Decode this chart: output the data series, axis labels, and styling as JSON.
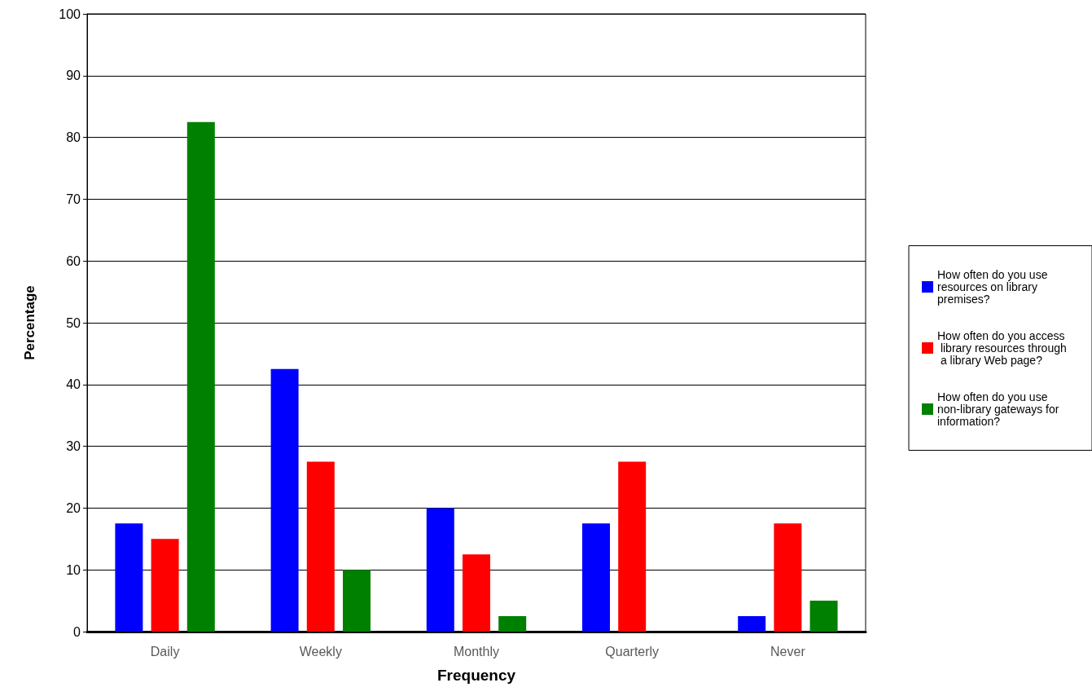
{
  "chart_data": {
    "type": "bar",
    "xlabel": "Frequency",
    "ylabel": "Percentage",
    "categories": [
      "Daily",
      "Weekly",
      "Monthly",
      "Quarterly",
      "Never"
    ],
    "series": [
      {
        "name": "How often do you use resources on library premises?",
        "color": "#0000ff",
        "values": [
          17.5,
          42.5,
          20,
          17.5,
          2.5
        ]
      },
      {
        "name": "How often do you access library resources through a library Web page?",
        "color": "#ff0000",
        "values": [
          15,
          27.5,
          12.5,
          27.5,
          17.5
        ]
      },
      {
        "name": "How often do you use non-library gateways for information?",
        "color": "#008000",
        "values": [
          82.5,
          10,
          2.5,
          0,
          5
        ]
      }
    ],
    "ylim": [
      0,
      100
    ],
    "yticks": [
      0,
      10,
      20,
      30,
      40,
      50,
      60,
      70,
      80,
      90,
      100
    ],
    "grid": "y",
    "legend": "right"
  }
}
